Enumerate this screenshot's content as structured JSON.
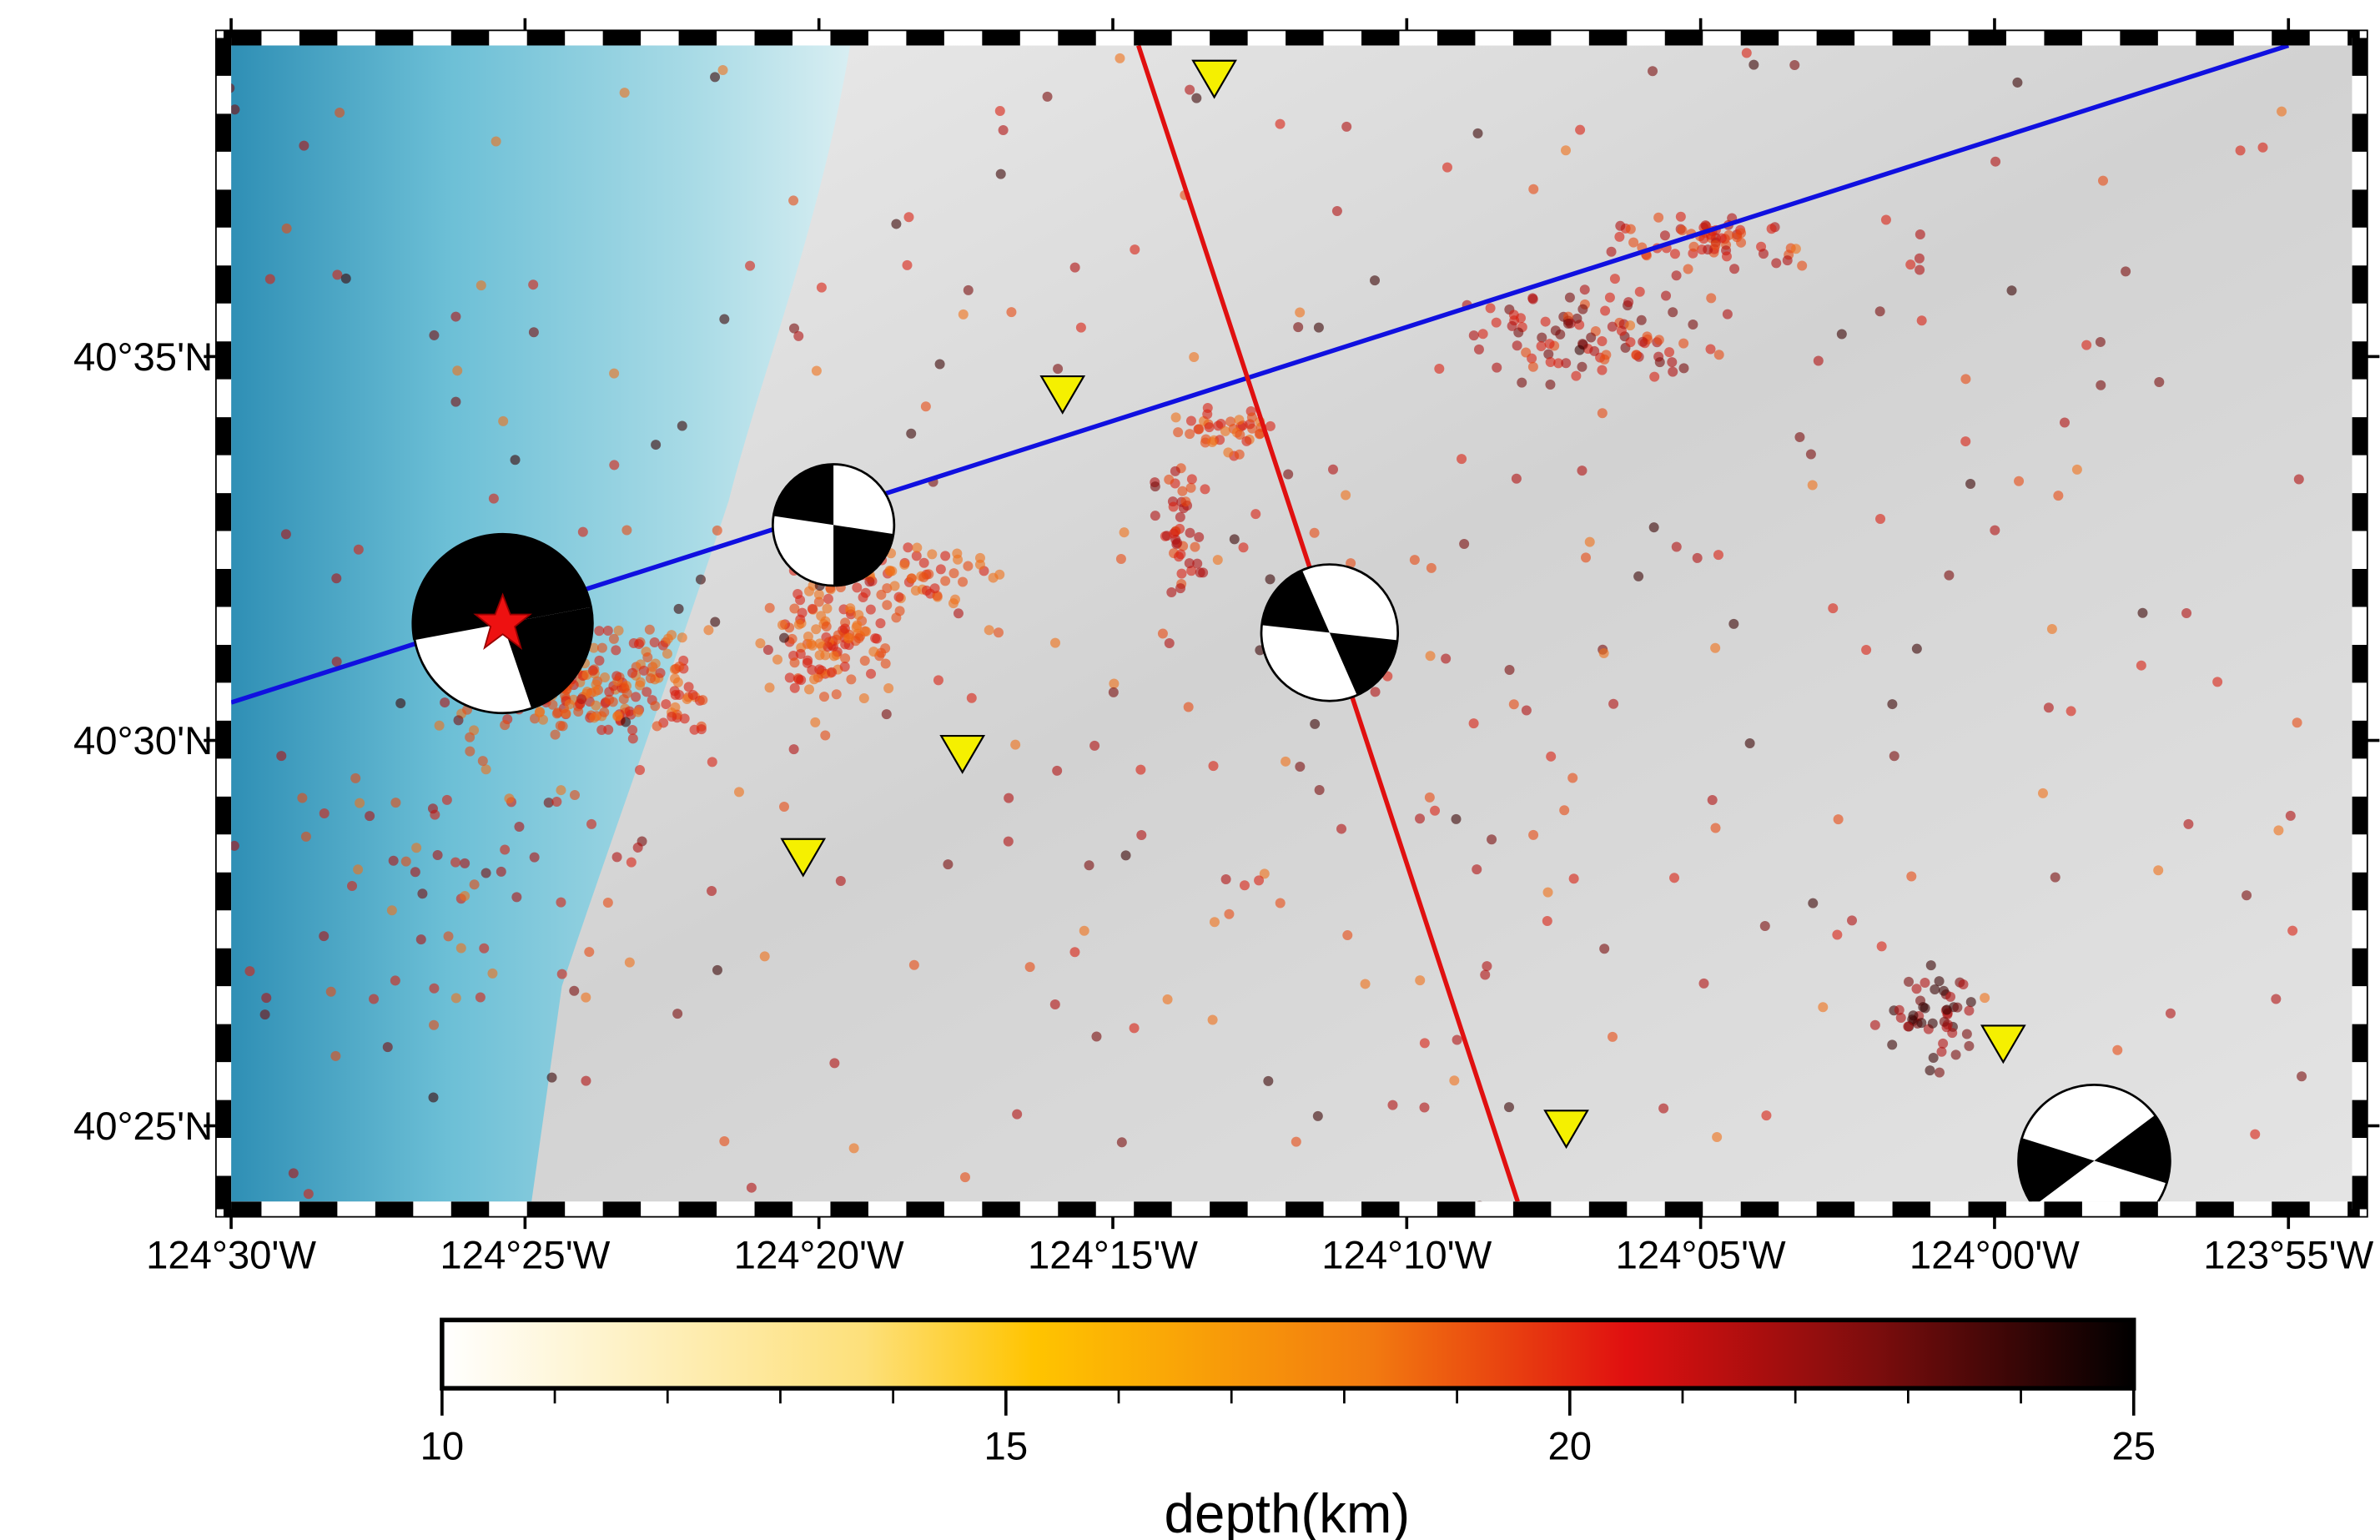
{
  "map": {
    "lon_ticks": [
      "124°30'W",
      "124°25'W",
      "124°20'W",
      "124°15'W",
      "124°10'W",
      "124°05'W",
      "124°00'W",
      "123°55'W"
    ],
    "lat_ticks": [
      "40°35'N",
      "40°30'N",
      "40°25'N"
    ],
    "colorbar": {
      "label": "depth(km)",
      "range": [
        10,
        25
      ],
      "ticks": [
        10,
        15,
        20,
        25
      ]
    }
  }
}
